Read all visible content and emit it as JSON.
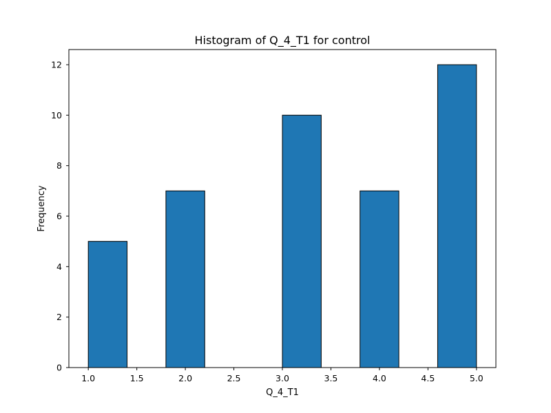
{
  "chart_data": {
    "type": "bar",
    "title": "Histogram of Q_4_T1 for control",
    "xlabel": "Q_4_T1",
    "ylabel": "Frequency",
    "bins": [
      {
        "start": 1.0,
        "end": 1.4,
        "count": 5
      },
      {
        "start": 1.4,
        "end": 1.8,
        "count": 0
      },
      {
        "start": 1.8,
        "end": 2.2,
        "count": 7
      },
      {
        "start": 2.2,
        "end": 2.6,
        "count": 0
      },
      {
        "start": 2.6,
        "end": 3.0,
        "count": 0
      },
      {
        "start": 3.0,
        "end": 3.4,
        "count": 10
      },
      {
        "start": 3.4,
        "end": 3.8,
        "count": 0
      },
      {
        "start": 3.8,
        "end": 4.2,
        "count": 7
      },
      {
        "start": 4.2,
        "end": 4.6,
        "count": 0
      },
      {
        "start": 4.6,
        "end": 5.0,
        "count": 12
      }
    ],
    "xlim": [
      0.8,
      5.2
    ],
    "ylim": [
      0,
      12.6
    ],
    "xticks": [
      1.0,
      1.5,
      2.0,
      2.5,
      3.0,
      3.5,
      4.0,
      4.5,
      5.0
    ],
    "xtick_labels": [
      "1.0",
      "1.5",
      "2.0",
      "2.5",
      "3.0",
      "3.5",
      "4.0",
      "4.5",
      "5.0"
    ],
    "yticks": [
      0,
      2,
      4,
      6,
      8,
      10,
      12
    ],
    "ytick_labels": [
      "0",
      "2",
      "4",
      "6",
      "8",
      "10",
      "12"
    ],
    "bar_color": "#1f77b4",
    "edge_color": "#000000",
    "grid": false,
    "legend": "none"
  }
}
